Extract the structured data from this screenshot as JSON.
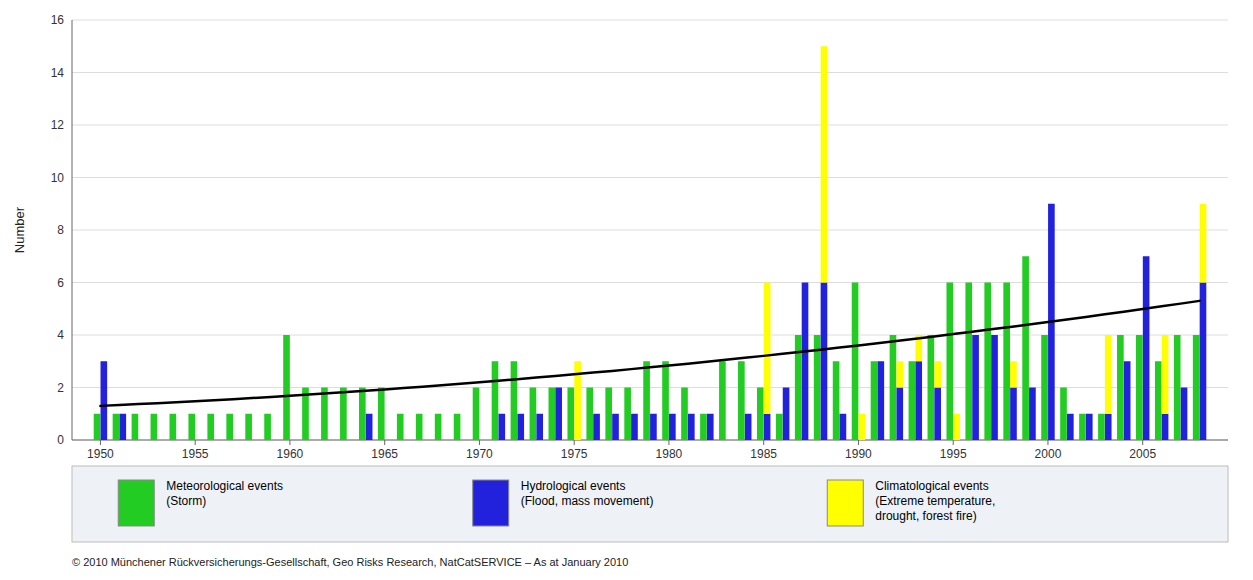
{
  "chart_data": {
    "type": "bar",
    "ylabel": "Number",
    "x": [
      1950,
      1951,
      1952,
      1953,
      1954,
      1955,
      1956,
      1957,
      1958,
      1959,
      1960,
      1961,
      1962,
      1963,
      1964,
      1965,
      1966,
      1967,
      1968,
      1969,
      1970,
      1971,
      1972,
      1973,
      1974,
      1975,
      1976,
      1977,
      1978,
      1979,
      1980,
      1981,
      1982,
      1983,
      1984,
      1985,
      1986,
      1987,
      1988,
      1989,
      1990,
      1991,
      1992,
      1993,
      1994,
      1995,
      1996,
      1997,
      1998,
      1999,
      2000,
      2001,
      2002,
      2003,
      2004,
      2005,
      2006,
      2007,
      2008
    ],
    "series": [
      {
        "name": "Meteorological events\n(Storm)",
        "color": "#22cc22",
        "values": [
          1,
          1,
          1,
          1,
          1,
          1,
          1,
          1,
          1,
          1,
          4,
          2,
          2,
          2,
          2,
          2,
          1,
          1,
          1,
          1,
          2,
          3,
          3,
          2,
          2,
          2,
          2,
          2,
          2,
          3,
          3,
          2,
          1,
          3,
          3,
          2,
          1,
          4,
          4,
          3,
          6,
          3,
          4,
          3,
          4,
          6,
          6,
          6,
          6,
          7,
          4,
          2,
          1,
          1,
          4,
          4,
          3,
          4,
          4
        ]
      },
      {
        "name": "Hydrological events\n(Flood, mass movement)",
        "color": "#2222dd",
        "values": [
          3,
          1,
          0,
          0,
          0,
          0,
          0,
          0,
          0,
          0,
          0,
          0,
          0,
          0,
          1,
          0,
          0,
          0,
          0,
          0,
          0,
          1,
          1,
          1,
          2,
          0,
          1,
          1,
          1,
          1,
          1,
          1,
          1,
          0,
          1,
          1,
          2,
          6,
          6,
          1,
          0,
          3,
          2,
          3,
          2,
          0,
          4,
          4,
          2,
          2,
          9,
          1,
          1,
          1,
          3,
          7,
          1,
          2,
          6
        ]
      },
      {
        "name": "Climatological events\n(Extreme temperature,\ndrought, forest fire)",
        "color": "#ffff00",
        "stacked": true,
        "values": [
          0,
          0,
          0,
          0,
          0,
          0,
          0,
          0,
          0,
          0,
          0,
          0,
          0,
          0,
          0,
          0,
          0,
          0,
          0,
          0,
          0,
          0,
          0,
          0,
          0,
          3,
          0,
          0,
          0,
          0,
          0,
          0,
          0,
          0,
          0,
          5,
          0,
          0,
          9,
          0,
          1,
          0,
          1,
          1,
          1,
          1,
          0,
          0,
          1,
          0,
          0,
          0,
          0,
          3,
          0,
          0,
          3,
          0,
          3
        ]
      },
      {
        "type": "line",
        "color": "#000000",
        "values": [
          1.3,
          1.333,
          1.367,
          1.403,
          1.439,
          1.477,
          1.517,
          1.557,
          1.599,
          1.642,
          1.686,
          1.732,
          1.779,
          1.827,
          1.876,
          1.927,
          1.979,
          2.032,
          2.086,
          2.142,
          2.199,
          2.257,
          2.317,
          2.377,
          2.439,
          2.503,
          2.567,
          2.633,
          2.7,
          2.768,
          2.838,
          2.909,
          2.981,
          3.054,
          3.129,
          3.205,
          3.282,
          3.361,
          3.44,
          3.521,
          3.603,
          3.687,
          3.772,
          3.858,
          3.945,
          4.034,
          4.123,
          4.215,
          4.307,
          4.401,
          4.495,
          4.592,
          4.689,
          4.788,
          4.888,
          4.989,
          5.091,
          5.195,
          5.3
        ]
      }
    ],
    "xlim": [
      1948.5,
      2009.5
    ],
    "xticks": [
      1950,
      1955,
      1960,
      1965,
      1970,
      1975,
      1980,
      1985,
      1990,
      1995,
      2000,
      2005
    ],
    "ylim": [
      0,
      16
    ],
    "yticks": [
      0,
      2,
      4,
      6,
      8,
      10,
      12,
      14,
      16
    ],
    "grid": true,
    "legend": "bottom",
    "annotations": [
      "© 2010 Münchener Rückversicherungs-Gesellschaft, Geo Risks Research, NatCatSERVICE  –  As at January 2010"
    ]
  }
}
